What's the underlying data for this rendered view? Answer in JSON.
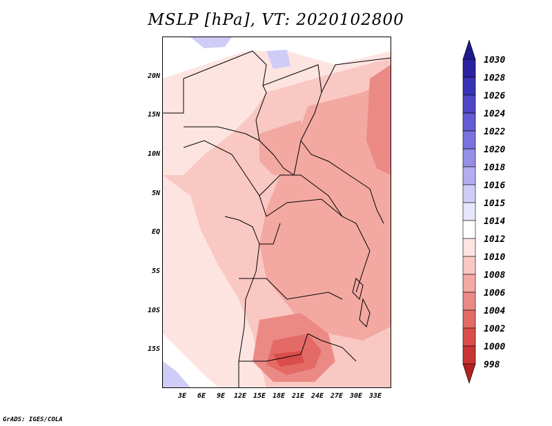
{
  "title": "MSLP [hPa], VT: 2020102800",
  "footer": "GrADS: IGES/COLA",
  "map": {
    "lat_labels": [
      "20N",
      "15N",
      "10N",
      "5N",
      "EQ",
      "5S",
      "10S",
      "15S"
    ],
    "lon_labels": [
      "3E",
      "6E",
      "9E",
      "12E",
      "15E",
      "18E",
      "21E",
      "24E",
      "27E",
      "30E",
      "33E"
    ]
  },
  "legend": {
    "levels": [
      "1030",
      "1028",
      "1026",
      "1024",
      "1022",
      "1020",
      "1018",
      "1016",
      "1015",
      "1014",
      "1012",
      "1010",
      "1008",
      "1006",
      "1004",
      "1002",
      "1000",
      "998"
    ],
    "colors": [
      "#1e1a8c",
      "#2a22a0",
      "#3a32b4",
      "#4e46c4",
      "#645cd2",
      "#7b73dd",
      "#958fe6",
      "#b2aef0",
      "#cfcdf7",
      "#e6e6fb",
      "#ffffff",
      "#fde4e1",
      "#f9c8c3",
      "#f3a8a2",
      "#eb8a85",
      "#e46a66",
      "#da4d4a",
      "#c93534",
      "#b32020"
    ]
  }
}
